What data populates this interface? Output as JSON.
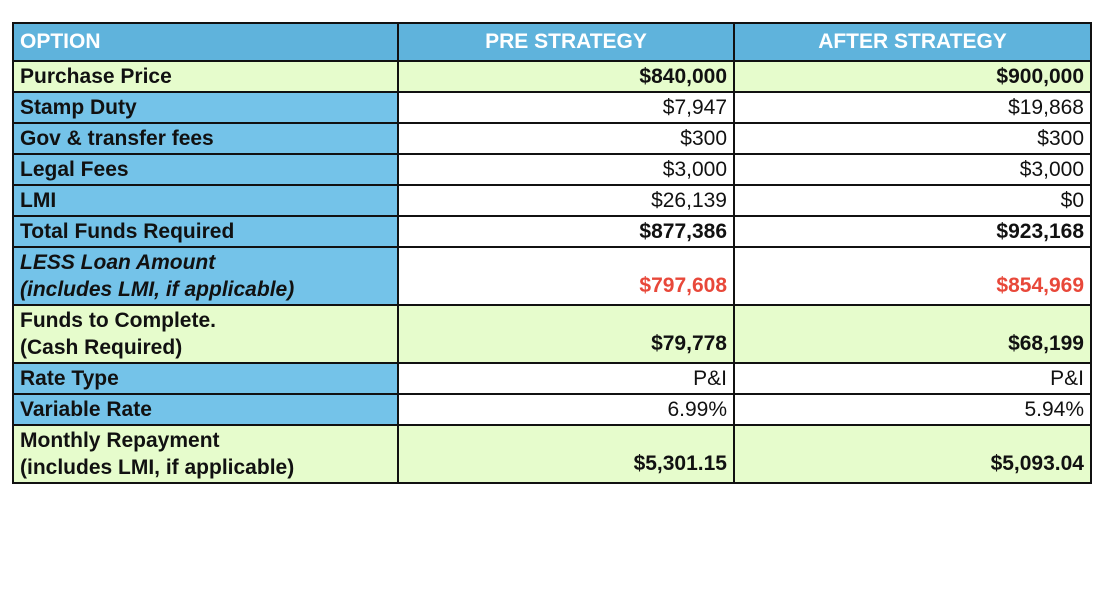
{
  "headers": [
    "OPTION",
    "PRE STRATEGY",
    "AFTER STRATEGY"
  ],
  "rows": [
    {
      "label": "Purchase Price",
      "pre": "$840,000",
      "after": "$900,000"
    },
    {
      "label": "Stamp Duty",
      "pre": "$7,947",
      "after": "$19,868"
    },
    {
      "label": "Gov & transfer fees",
      "pre": "$300",
      "after": "$300"
    },
    {
      "label": "Legal Fees",
      "pre": "$3,000",
      "after": "$3,000"
    },
    {
      "label": "LMI",
      "pre": "$26,139",
      "after": "$0"
    },
    {
      "label": "Total Funds Required",
      "pre": "$877,386",
      "after": "$923,168"
    },
    {
      "label": "LESS Loan Amount",
      "label2": "(includes LMI, if applicable)",
      "pre": "$797,608",
      "after": "$854,969"
    },
    {
      "label": "Funds to Complete.",
      "label2": "(Cash Required)",
      "pre": "$79,778",
      "after": "$68,199"
    },
    {
      "label": "Rate Type",
      "pre": "P&I",
      "after": "P&I"
    },
    {
      "label": "Variable Rate",
      "pre": "6.99%",
      "after": "5.94%"
    },
    {
      "label": "Monthly Repayment",
      "label2": "(includes LMI, if applicable)",
      "pre": "$5,301.15",
      "after": "$5,093.04"
    }
  ],
  "colors": {
    "header": "#5fb3dc",
    "label": "#74c3e9",
    "highlight": "#e6fccc",
    "negative": "#e8483a"
  }
}
